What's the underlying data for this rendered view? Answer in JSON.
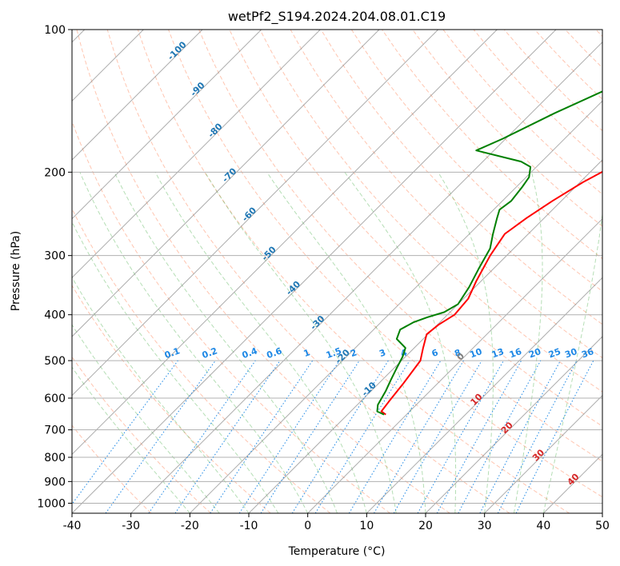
{
  "chart_data": {
    "type": "line",
    "title": "wetPf2_S194.2024.204.08.01.C19",
    "xlabel": "Temperature (°C)",
    "ylabel": "Pressure (hPa)",
    "xlim": [
      -40,
      50
    ],
    "ylim": [
      1050,
      100
    ],
    "y_scale": "log",
    "grid": true,
    "x_ticks": [
      "-40",
      "-30",
      "-20",
      "-10",
      "0",
      "10",
      "20",
      "30",
      "40",
      "50"
    ],
    "y_ticks": [
      "100",
      "200",
      "300",
      "400",
      "500",
      "600",
      "700",
      "800",
      "900",
      "1000"
    ],
    "colors": {
      "temperature": "#ff0000",
      "dewpoint": "#008000",
      "dry_adiabat": "#ff7f50",
      "moist_adiabat": "#2ca02c",
      "mixing_ratio": "#1e88e5",
      "isotherm": "#808080",
      "label_cold": "#1f77b4",
      "label_zero": "#808080",
      "label_warm": "#d62728"
    },
    "series": [
      {
        "pressure": [
          650,
          640,
          610,
          560,
          500,
          470,
          440,
          420,
          400,
          370,
          340,
          300,
          270,
          250,
          230,
          210,
          190,
          170,
          150,
          135,
          120,
          110,
          100
        ],
        "temperature": [
          -3.5,
          -4.8,
          -5.2,
          -5.8,
          -6.8,
          -8.5,
          -10.2,
          -9.8,
          -8.8,
          -9.2,
          -10.8,
          -12.8,
          -14.0,
          -13.0,
          -11.5,
          -9.5,
          -6.5,
          -3.0,
          -1.5,
          -0.2,
          1.2,
          1.6,
          2.2
        ]
      },
      {
        "pressure": [
          650,
          640,
          620,
          580,
          550,
          520,
          490,
          470,
          450,
          430,
          415,
          405,
          395,
          380,
          350,
          320,
          290,
          270,
          250,
          240,
          230,
          215,
          205,
          195,
          190,
          180,
          170,
          150,
          130,
          112,
          100
        ],
        "dewpoint": [
          -3.8,
          -5.5,
          -6.5,
          -7.5,
          -8.5,
          -9.5,
          -10.5,
          -11.5,
          -14.5,
          -15.5,
          -14.5,
          -13.0,
          -11.0,
          -10.0,
          -11.0,
          -12.5,
          -14.0,
          -16.0,
          -18.0,
          -19.0,
          -18.5,
          -19.0,
          -19.5,
          -21.0,
          -23.5,
          -33.0,
          -30.5,
          -26.0,
          -20.0,
          -11.0,
          1.0
        ]
      }
    ],
    "isotherm_labels": [
      "-100",
      "-90",
      "-80",
      "-70",
      "-60",
      "-50",
      "-40",
      "-30",
      "-20",
      "-10",
      "0",
      "10",
      "20",
      "30",
      "40"
    ],
    "mixing_ratio_labels": [
      "0.1",
      "0.2",
      "0.4",
      "0.6",
      "1",
      "1.5",
      "2",
      "3",
      "4",
      "6",
      "8",
      "10",
      "13",
      "16",
      "20",
      "25",
      "30",
      "36"
    ]
  }
}
